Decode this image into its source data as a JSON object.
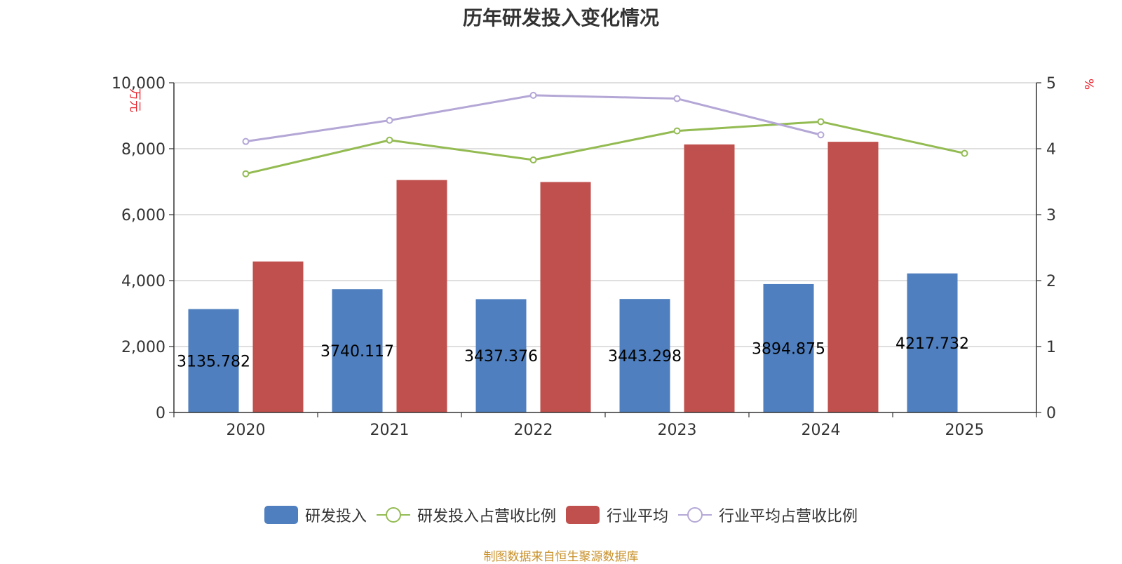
{
  "chart_data": {
    "type": "bar",
    "title": "历年研发投入变化情况",
    "source_note": "制图数据来自恒生聚源数据库",
    "categories": [
      "2020",
      "2021",
      "2022",
      "2023",
      "2024",
      "2025"
    ],
    "y_left": {
      "unit_label": "万元",
      "ylim": [
        0,
        10000
      ],
      "ticks": [
        "0",
        "2,000",
        "4,000",
        "6,000",
        "8,000",
        "10,000"
      ]
    },
    "y_right": {
      "unit_label": "%",
      "ylim": [
        0,
        5
      ],
      "ticks": [
        "0",
        "1",
        "2",
        "3",
        "4",
        "5"
      ]
    },
    "grid": true,
    "legend_position": "bottom",
    "series": [
      {
        "name": "研发投入",
        "type": "bar",
        "axis": "left",
        "color": "#4f7fbe",
        "values": [
          3135.782,
          3740.117,
          3437.376,
          3443.298,
          3894.875,
          4217.732
        ],
        "labels": [
          "3135.782",
          "3740.117",
          "3437.376",
          "3443.298",
          "3894.875",
          "4217.732"
        ]
      },
      {
        "name": "研发投入占营收比例",
        "type": "line",
        "axis": "right",
        "color": "#93bb52",
        "values": [
          3.62,
          4.13,
          3.83,
          4.27,
          4.41,
          3.93
        ]
      },
      {
        "name": "行业平均",
        "type": "bar",
        "axis": "left",
        "color": "#c0504d",
        "values": [
          4580,
          7050,
          6990,
          8130,
          8210,
          null
        ]
      },
      {
        "name": "行业平均占营收比例",
        "type": "line",
        "axis": "right",
        "color": "#b4a7d6",
        "values": [
          4.11,
          4.43,
          4.81,
          4.76,
          4.21,
          null
        ]
      }
    ]
  }
}
